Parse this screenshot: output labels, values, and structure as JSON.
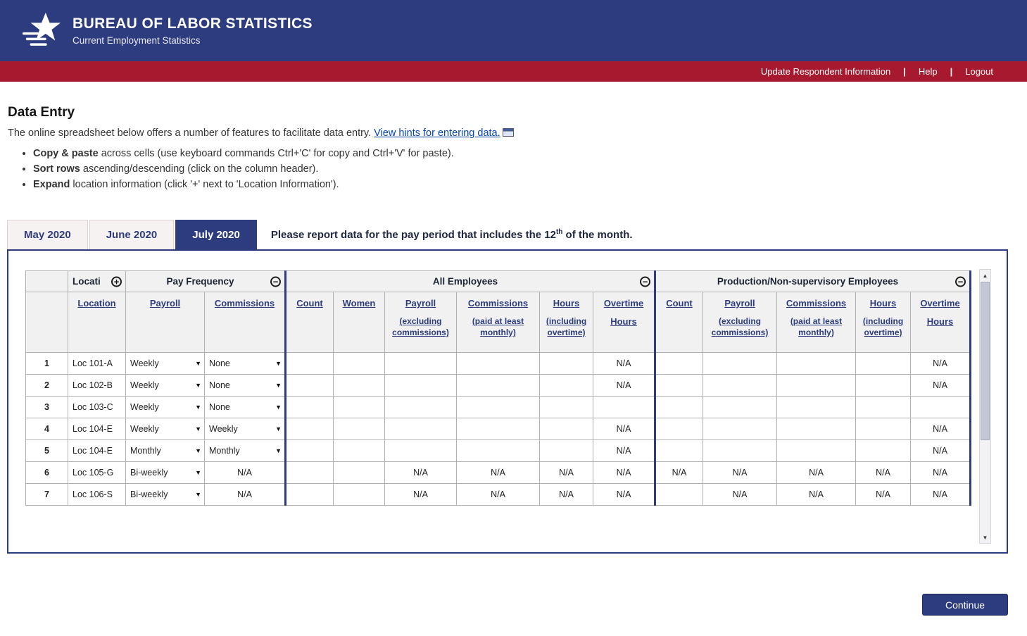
{
  "banner": {
    "title": "BUREAU OF LABOR STATISTICS",
    "subtitle": "Current Employment Statistics"
  },
  "nav": {
    "update": "Update Respondent Information",
    "help": "Help",
    "logout": "Logout",
    "separator": "|"
  },
  "page": {
    "title": "Data Entry",
    "intro": "The online spreadsheet below offers a number of features to facilitate data entry. ",
    "hints_link": "View hints for entering data.",
    "bullets": [
      {
        "lead": "Copy & paste",
        "text": " across cells (use keyboard commands Ctrl+'C' for copy and Ctrl+'V' for paste)."
      },
      {
        "lead": "Sort rows",
        "text": " ascending/descending (click on the column header)."
      },
      {
        "lead": "Expand",
        "text": " location information (click '+' next to 'Location Information')."
      }
    ]
  },
  "tabs": [
    {
      "label": "May 2020",
      "active": false
    },
    {
      "label": "June 2020",
      "active": false
    },
    {
      "label": "July 2020",
      "active": true
    }
  ],
  "note": {
    "prefix": "Please report data for the pay period that includes the 12",
    "sup": "th",
    "suffix": " of the month."
  },
  "table": {
    "group_headers": {
      "location": "Locati",
      "pay_frequency": "Pay Frequency",
      "all_employees": "All Employees",
      "production": "Production/Non-supervisory Employees"
    },
    "columns": {
      "location": "Location",
      "payroll_freq": "Payroll",
      "commissions_freq": "Commissions",
      "count": "Count",
      "women": "Women",
      "payroll": "Payroll",
      "payroll_note1": "(excluding",
      "payroll_note2": "commissions)",
      "commissions": "Commissions",
      "commissions_note1": "(paid at least",
      "commissions_note2": "monthly)",
      "hours": "Hours",
      "hours_note1": "(including",
      "hours_note2": "overtime)",
      "overtime_line1": "Overtime",
      "overtime_line2": "Hours"
    },
    "rows": [
      {
        "num": "1",
        "location": "Loc 101-A",
        "payroll_freq": "Weekly",
        "commissions_freq": "None",
        "all": [
          "",
          "",
          "",
          "",
          "",
          "N/A"
        ],
        "prod": [
          "",
          "",
          "",
          "",
          "N/A"
        ]
      },
      {
        "num": "2",
        "location": "Loc 102-B",
        "payroll_freq": "Weekly",
        "commissions_freq": "None",
        "all": [
          "",
          "",
          "",
          "",
          "",
          "N/A"
        ],
        "prod": [
          "",
          "",
          "",
          "",
          "N/A"
        ]
      },
      {
        "num": "3",
        "location": "Loc 103-C",
        "payroll_freq": "Weekly",
        "commissions_freq": "None",
        "all": [
          "",
          "",
          "",
          "",
          "",
          ""
        ],
        "prod": [
          "",
          "",
          "",
          "",
          ""
        ]
      },
      {
        "num": "4",
        "location": "Loc 104-E",
        "payroll_freq": "Weekly",
        "commissions_freq": "Weekly",
        "all": [
          "",
          "",
          "",
          "",
          "",
          "N/A"
        ],
        "prod": [
          "",
          "",
          "",
          "",
          "N/A"
        ]
      },
      {
        "num": "5",
        "location": "Loc 104-E",
        "payroll_freq": "Monthly",
        "commissions_freq": "Monthly",
        "all": [
          "",
          "",
          "",
          "",
          "",
          "N/A"
        ],
        "prod": [
          "",
          "",
          "",
          "",
          "N/A"
        ]
      },
      {
        "num": "6",
        "location": "Loc 105-G",
        "payroll_freq": "Bi-weekly",
        "commissions_freq": "N/A",
        "all": [
          "",
          "",
          "N/A",
          "N/A",
          "N/A",
          "N/A"
        ],
        "prod": [
          "N/A",
          "N/A",
          "N/A",
          "N/A",
          "N/A"
        ]
      },
      {
        "num": "7",
        "location": "Loc 106-S",
        "payroll_freq": "Bi-weekly",
        "commissions_freq": "N/A",
        "all": [
          "",
          "",
          "N/A",
          "N/A",
          "N/A",
          "N/A"
        ],
        "prod": [
          "",
          "N/A",
          "N/A",
          "N/A",
          "N/A"
        ]
      }
    ]
  },
  "continue_label": "Continue",
  "colors": {
    "navy": "#2d3c7e",
    "red": "#a6192e",
    "na_gray": "#d8d8d8"
  }
}
